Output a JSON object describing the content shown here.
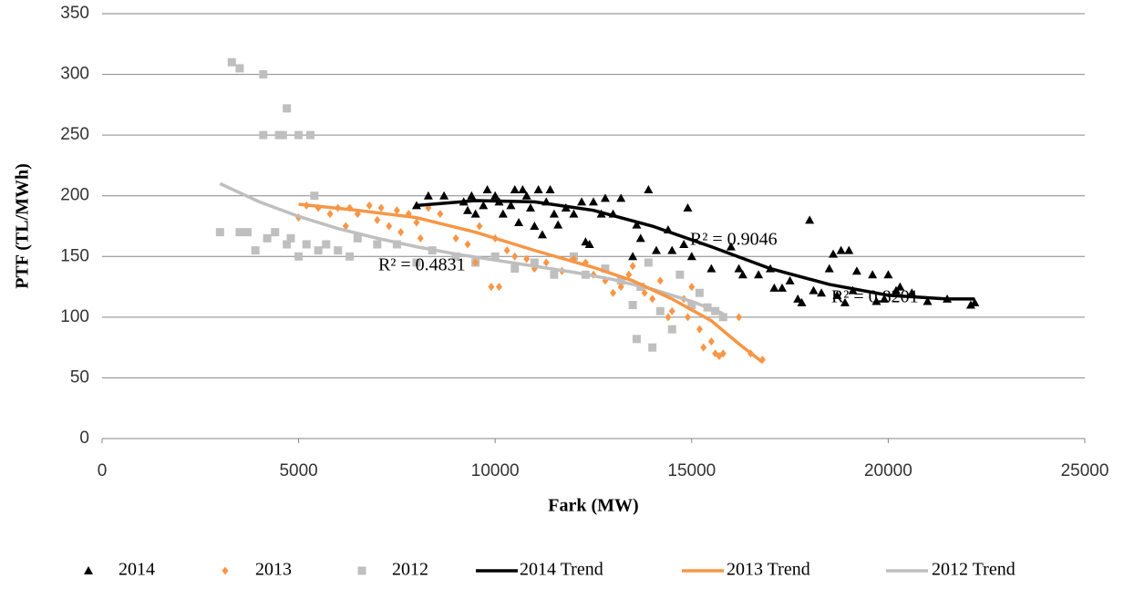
{
  "chart_data": {
    "type": "scatter",
    "xlabel": "Fark (MW)",
    "ylabel": "PTF (TL/MWh)",
    "xlim": [
      0,
      25000
    ],
    "xticks": [
      0,
      5000,
      10000,
      15000,
      20000,
      25000
    ],
    "ylim": [
      0,
      350
    ],
    "yticks": [
      0,
      50,
      100,
      150,
      200,
      250,
      300,
      350
    ],
    "grid": true,
    "legend": "bottom",
    "annotations": [
      "R² = 0.4831",
      "R² = 0.9046",
      "R² = 0.8201"
    ],
    "series": [
      {
        "name": "2014",
        "color": "#000000",
        "marker": "triangle",
        "x": [
          8000,
          8300,
          8700,
          9200,
          9300,
          9400,
          9500,
          9700,
          9800,
          10000,
          10100,
          10200,
          10400,
          10500,
          10600,
          10700,
          10800,
          10900,
          11000,
          11100,
          11200,
          11300,
          11400,
          11500,
          11600,
          11800,
          12000,
          12200,
          12300,
          12400,
          12500,
          12700,
          12800,
          13000,
          13200,
          13500,
          13600,
          13700,
          13900,
          14100,
          14400,
          14500,
          14800,
          14900,
          15000,
          15500,
          16000,
          16200,
          16300,
          16700,
          17000,
          17100,
          17300,
          17500,
          17700,
          17800,
          18000,
          18100,
          18300,
          18500,
          18600,
          18700,
          18800,
          18900,
          19000,
          19100,
          19200,
          19600,
          19700,
          19900,
          20000,
          20200,
          20300,
          20600,
          21000,
          21500,
          22100,
          22200
        ],
        "values": [
          192,
          200,
          200,
          195,
          188,
          200,
          185,
          192,
          205,
          200,
          195,
          185,
          192,
          205,
          178,
          205,
          200,
          190,
          175,
          205,
          168,
          195,
          205,
          185,
          176,
          190,
          185,
          195,
          162,
          160,
          195,
          185,
          198,
          185,
          198,
          150,
          176,
          165,
          205,
          155,
          172,
          155,
          160,
          190,
          150,
          140,
          158,
          140,
          135,
          135,
          140,
          124,
          124,
          130,
          115,
          112,
          180,
          122,
          120,
          140,
          152,
          118,
          155,
          112,
          155,
          122,
          138,
          135,
          113,
          115,
          135,
          122,
          125,
          120,
          113,
          115,
          110,
          112
        ]
      },
      {
        "name": "2013",
        "color": "#f79646",
        "marker": "diamond",
        "x": [
          5000,
          5200,
          5500,
          5800,
          6000,
          6200,
          6300,
          6500,
          6800,
          7000,
          7100,
          7300,
          7500,
          7600,
          7800,
          8000,
          8100,
          8300,
          8600,
          9000,
          9300,
          9500,
          9600,
          9900,
          10000,
          10100,
          10300,
          10500,
          10800,
          11000,
          11300,
          11700,
          12000,
          12300,
          12500,
          12800,
          13000,
          13200,
          13400,
          13500,
          13800,
          14000,
          14200,
          14400,
          14500,
          14800,
          14900,
          15000,
          15200,
          15300,
          15500,
          15600,
          15700,
          15800,
          16200,
          16500,
          16800
        ],
        "values": [
          182,
          192,
          190,
          185,
          190,
          175,
          190,
          185,
          192,
          180,
          190,
          175,
          188,
          170,
          185,
          178,
          165,
          190,
          185,
          165,
          160,
          145,
          175,
          125,
          165,
          125,
          155,
          150,
          148,
          140,
          145,
          138,
          148,
          145,
          135,
          130,
          120,
          125,
          135,
          142,
          120,
          115,
          130,
          100,
          105,
          115,
          100,
          125,
          90,
          75,
          80,
          70,
          68,
          70,
          100,
          70,
          65
        ]
      },
      {
        "name": "2012",
        "color": "#bfbfbf",
        "marker": "square",
        "x": [
          3000,
          3300,
          3500,
          3500,
          3700,
          3900,
          4100,
          4100,
          4200,
          4400,
          4500,
          4600,
          4700,
          4700,
          4800,
          5000,
          5000,
          5200,
          5300,
          5400,
          5500,
          5700,
          6000,
          6300,
          6500,
          7000,
          7500,
          8000,
          8400,
          9000,
          9500,
          10000,
          10500,
          11000,
          11500,
          12000,
          12300,
          12800,
          13200,
          13600,
          13500,
          13700,
          13900,
          14000,
          14200,
          14500,
          14700,
          15000,
          15200,
          15400,
          15600,
          15800
        ],
        "values": [
          170,
          310,
          305,
          170,
          170,
          155,
          250,
          300,
          165,
          170,
          250,
          250,
          272,
          160,
          165,
          250,
          150,
          160,
          250,
          200,
          155,
          160,
          155,
          150,
          165,
          160,
          160,
          145,
          155,
          150,
          145,
          150,
          140,
          145,
          135,
          150,
          135,
          140,
          130,
          82,
          110,
          125,
          145,
          75,
          105,
          90,
          135,
          110,
          120,
          108,
          105,
          100
        ]
      },
      {
        "name": "2014 Trend",
        "color": "#000000",
        "marker": "line",
        "x": [
          8000,
          9500,
          11000,
          12500,
          14000,
          15500,
          17000,
          18500,
          20000,
          21500,
          22200
        ],
        "values": [
          192,
          196,
          195,
          188,
          175,
          158,
          140,
          127,
          118,
          115,
          115
        ]
      },
      {
        "name": "2013 Trend",
        "color": "#f79646",
        "marker": "line",
        "x": [
          5000,
          6500,
          8000,
          9500,
          11000,
          12500,
          13500,
          14500,
          15500,
          16200,
          16800
        ],
        "values": [
          193,
          188,
          182,
          170,
          155,
          141,
          130,
          115,
          97,
          78,
          63
        ]
      },
      {
        "name": "2012 Trend",
        "color": "#bfbfbf",
        "marker": "line",
        "x": [
          3000,
          4000,
          5000,
          6000,
          7000,
          8000,
          9000,
          10000,
          11000,
          12000,
          13000,
          14000,
          15000,
          15800
        ],
        "values": [
          210,
          195,
          183,
          173,
          165,
          158,
          152,
          147,
          142,
          137,
          131,
          123,
          113,
          103
        ]
      }
    ]
  }
}
